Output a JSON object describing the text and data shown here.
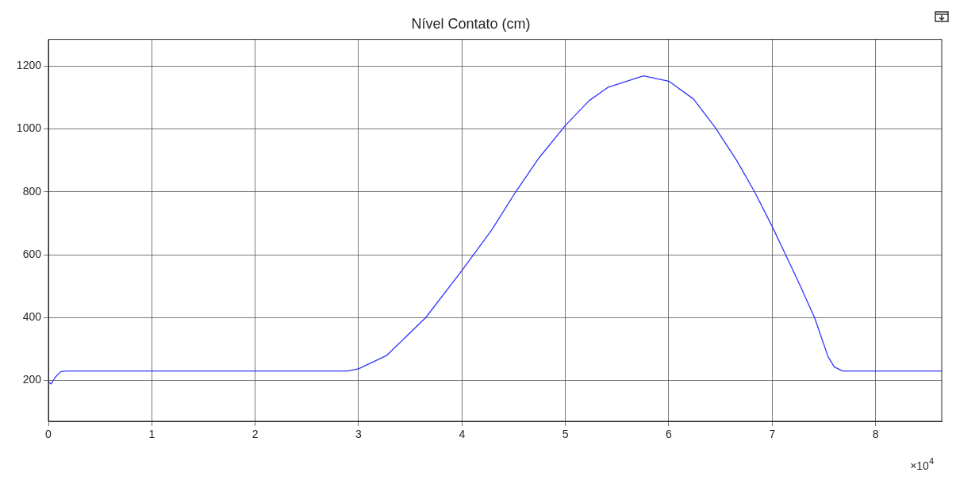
{
  "chart_data": {
    "type": "line",
    "title": "Nível Contato (cm)",
    "x": [
      0,
      0.027,
      0.066,
      0.12,
      0.175,
      1,
      2,
      2.89,
      3,
      3.27,
      3.65,
      4,
      4.29,
      4.52,
      4.745,
      5,
      5.23,
      5.41,
      5.755,
      6,
      6.24,
      6.45,
      6.66,
      6.83,
      7,
      7.13,
      7.27,
      7.41,
      7.54,
      7.6,
      7.68,
      8,
      8.64
    ],
    "series": [
      {
        "color": "#3333ff",
        "values": [
          195,
          189,
          210,
          228,
          230,
          230,
          230,
          230,
          237,
          279,
          400,
          550,
          680,
          800,
          908,
          1011,
          1090,
          1132,
          1169,
          1152,
          1095,
          1004,
          898,
          800,
          690,
          600,
          502,
          400,
          276,
          243,
          230,
          230,
          230
        ]
      }
    ],
    "xlim": [
      0,
      8.64
    ],
    "xticks": [
      0,
      1,
      2,
      3,
      4,
      5,
      6,
      7,
      8
    ],
    "ylim": [
      70,
      1285
    ],
    "yticks": [
      200,
      400,
      600,
      800,
      1000,
      1200
    ],
    "annotations": [
      "×10$^{4}$"
    ],
    "grid": true,
    "legend": false,
    "marker": "none",
    "line_style": "solid"
  }
}
